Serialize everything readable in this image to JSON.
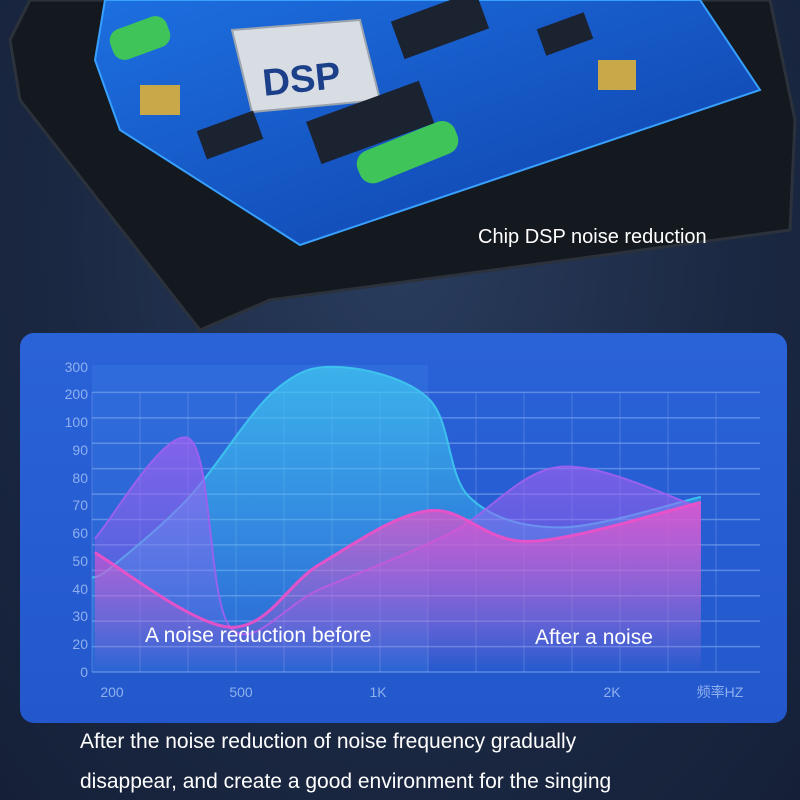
{
  "caption": "Chip DSP noise reduction",
  "chip_label": "DSP",
  "chart_data": {
    "type": "area",
    "title": "",
    "xlabel": "频率HZ",
    "ylabel": "",
    "x_ticks": [
      "200",
      "500",
      "1K",
      "2K"
    ],
    "y_ticks": [
      "0",
      "10",
      "20",
      "30",
      "40",
      "50",
      "60",
      "70",
      "80",
      "90",
      "100",
      "200",
      "300"
    ],
    "grid": true,
    "series": [
      {
        "color": "#3fc8f0",
        "points": [
          [
            150,
            44
          ],
          [
            200,
            48
          ],
          [
            380,
            73
          ],
          [
            620,
            210
          ],
          [
            860,
            300
          ],
          [
            1220,
            180
          ],
          [
            1390,
            73
          ],
          [
            1780,
            62
          ],
          [
            2380,
            73
          ]
        ]
      },
      {
        "color": "#a060f0",
        "points": [
          [
            160,
            58
          ],
          [
            380,
            94
          ],
          [
            475,
            26
          ],
          [
            790,
            40
          ],
          [
            1310,
            60
          ],
          [
            1780,
            84
          ],
          [
            2380,
            69
          ]
        ]
      },
      {
        "color": "#f050c8",
        "points": [
          [
            160,
            53
          ],
          [
            475,
            26
          ],
          [
            790,
            49
          ],
          [
            1220,
            68
          ],
          [
            1650,
            57
          ],
          [
            2380,
            71
          ]
        ]
      }
    ],
    "annotations": [
      "A noise reduction before",
      "After a noise"
    ]
  },
  "bottom_text": [
    "After the noise reduction of noise frequency gradually",
    "disappear, and create a good environment for the singing"
  ]
}
